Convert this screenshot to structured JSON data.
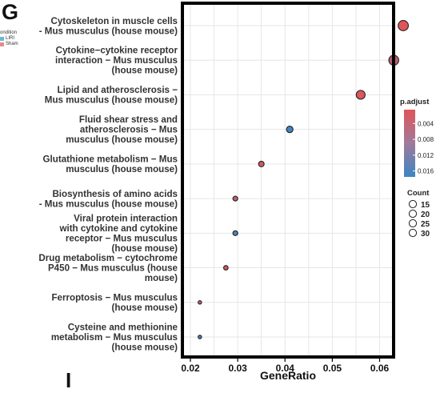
{
  "panel": {
    "letter": "G",
    "bottom_letter": "I"
  },
  "corner_legend": {
    "title": "ondition",
    "entries": [
      {
        "label": "LIRI",
        "color": "#6ab8d8"
      },
      {
        "label": "Sham",
        "color": "#e88a86"
      }
    ]
  },
  "chart_data": {
    "type": "scatter",
    "xlabel": "GeneRatio",
    "ylabel": "",
    "xlim": [
      0.02,
      0.067
    ],
    "xticks": [
      "0.02",
      "0.03",
      "0.04",
      "0.05",
      "0.06"
    ],
    "xtick_values": [
      0.02,
      0.03,
      0.04,
      0.05,
      0.06
    ],
    "grid": true,
    "legend_position": "right",
    "categories": [
      {
        "lines": [
          "Cytoskeleton in muscle cells",
          "- Mus musculus (house mouse)"
        ],
        "x": 0.065,
        "p_adjust": 0.0005,
        "count": 30
      },
      {
        "lines": [
          "Cytokine−cytokine receptor",
          "interaction − Mus musculus",
          "(house mouse)"
        ],
        "x": 0.063,
        "p_adjust": 0.004,
        "count": 29
      },
      {
        "lines": [
          "Lipid and atherosclerosis −",
          "Mus musculus (house mouse)"
        ],
        "x": 0.056,
        "p_adjust": 0.001,
        "count": 26
      },
      {
        "lines": [
          "Fluid shear stress and",
          "atherosclerosis − Mus",
          "musculus (house mouse)"
        ],
        "x": 0.041,
        "p_adjust": 0.0165,
        "count": 19
      },
      {
        "lines": [
          "Glutathione metabolism − Mus",
          "musculus (house mouse)"
        ],
        "x": 0.035,
        "p_adjust": 0.0015,
        "count": 16
      },
      {
        "lines": [
          "Biosynthesis of amino acids",
          "- Mus musculus (house mouse)"
        ],
        "x": 0.0295,
        "p_adjust": 0.004,
        "count": 14
      },
      {
        "lines": [
          "Viral protein interaction",
          "with cytokine and cytokine",
          "receptor − Mus musculus",
          "(house mouse)"
        ],
        "x": 0.0295,
        "p_adjust": 0.016,
        "count": 14
      },
      {
        "lines": [
          "Drug metabolism − cytochrome",
          "P450 − Mus musculus (house",
          "mouse)"
        ],
        "x": 0.0275,
        "p_adjust": 0.002,
        "count": 13
      },
      {
        "lines": [
          "Ferroptosis − Mus musculus",
          "(house mouse)"
        ],
        "x": 0.022,
        "p_adjust": 0.004,
        "count": 10
      },
      {
        "lines": [
          "Cysteine and methionine",
          "metabolism − Mus musculus",
          "(house mouse)"
        ],
        "x": 0.022,
        "p_adjust": 0.016,
        "count": 10
      }
    ],
    "color_legend": {
      "title": "p.adjust",
      "ticks": [
        "0.004",
        "0.008",
        "0.012",
        "0.016"
      ],
      "tick_values": [
        0.004,
        0.008,
        0.012,
        0.016
      ],
      "range": [
        0.0005,
        0.0175
      ],
      "low_color": "#e0555a",
      "high_color": "#3a86c4"
    },
    "size_legend": {
      "title": "Count",
      "values": [
        15,
        20,
        25,
        30
      ],
      "labels": [
        "15",
        "20",
        "25",
        "30"
      ]
    }
  }
}
